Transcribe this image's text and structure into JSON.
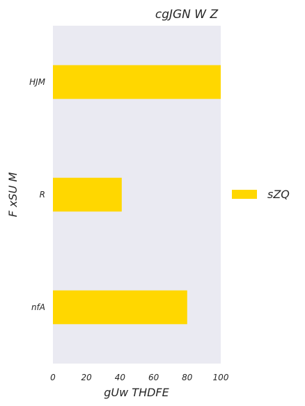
{
  "chart_data": {
    "type": "bar",
    "orientation": "horizontal",
    "title": "cgJGN W Z",
    "xlabel": "gUw THDFE",
    "ylabel": "F xSU M",
    "categories": [
      "HJM",
      "R",
      "nfA"
    ],
    "series": [
      {
        "name": "sZQ",
        "values": [
          100,
          41,
          80
        ],
        "color": "#FFD700"
      }
    ],
    "xlim": [
      0,
      100
    ],
    "xticks": [
      0,
      20,
      40,
      60,
      80,
      100
    ],
    "xtick_labels": [
      "0",
      "20",
      "40",
      "60",
      "80",
      "100"
    ],
    "grid": false,
    "background_color": "#EAEAF2",
    "legend_position": "right"
  }
}
